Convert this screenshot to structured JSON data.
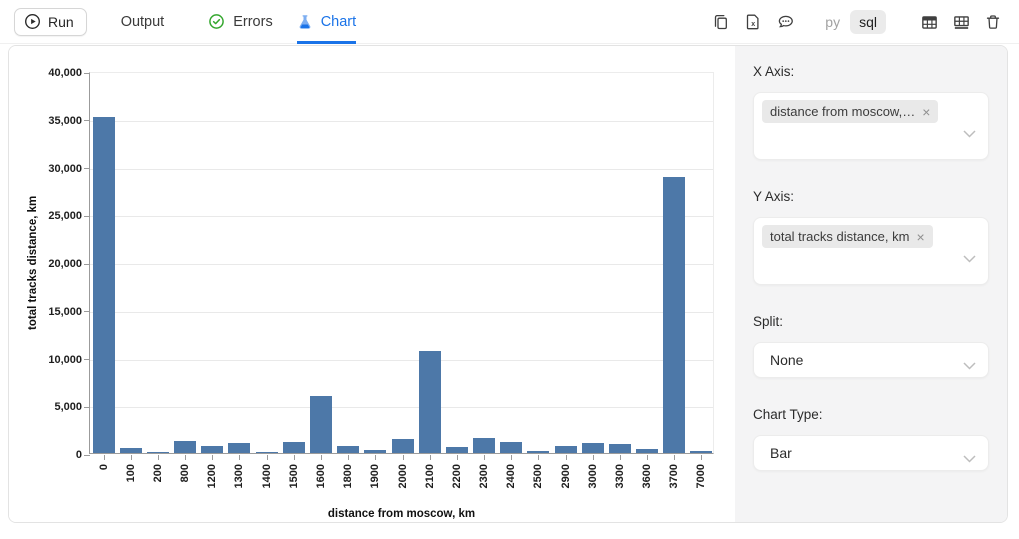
{
  "toolbar": {
    "run_label": "Run",
    "tabs": [
      {
        "label": "Output",
        "active": false
      },
      {
        "label": "Errors",
        "active": false,
        "icon": "check-circle-icon"
      },
      {
        "label": "Chart",
        "active": true,
        "icon": "flask-icon"
      }
    ],
    "action_icons": [
      "copy-icon",
      "export-excel-icon",
      "comment-icon"
    ],
    "lang": {
      "py": "py",
      "sql": "sql",
      "active": "sql"
    },
    "table_icons": [
      "table-header-icon",
      "table-grid-icon",
      "trash-icon"
    ],
    "accent_color": "#1a73e8",
    "success_color": "#35a72f"
  },
  "panel": {
    "x_axis": {
      "label": "X Axis:",
      "chip": "distance from moscow,…"
    },
    "y_axis": {
      "label": "Y Axis:",
      "chip": "total tracks distance, km"
    },
    "split": {
      "label": "Split:",
      "value": "None"
    },
    "chart_type": {
      "label": "Chart Type:",
      "value": "Bar"
    }
  },
  "chart_data": {
    "type": "bar",
    "title": "",
    "xlabel": "distance from moscow, km",
    "ylabel": "total tracks distance, km",
    "categories": [
      "0",
      "100",
      "200",
      "800",
      "1200",
      "1300",
      "1400",
      "1500",
      "1600",
      "1800",
      "1900",
      "2000",
      "2100",
      "2200",
      "2300",
      "2400",
      "2500",
      "2900",
      "3000",
      "3300",
      "3600",
      "3700",
      "7000"
    ],
    "values": [
      35200,
      550,
      60,
      1250,
      750,
      1050,
      120,
      1200,
      5950,
      700,
      350,
      1450,
      10650,
      620,
      1600,
      1200,
      230,
      700,
      1050,
      950,
      450,
      28850,
      200
    ],
    "ylim": [
      0,
      40000
    ],
    "ytick_step": 5000,
    "bar_color": "#4d78a8",
    "grid": true,
    "legend": "none"
  }
}
